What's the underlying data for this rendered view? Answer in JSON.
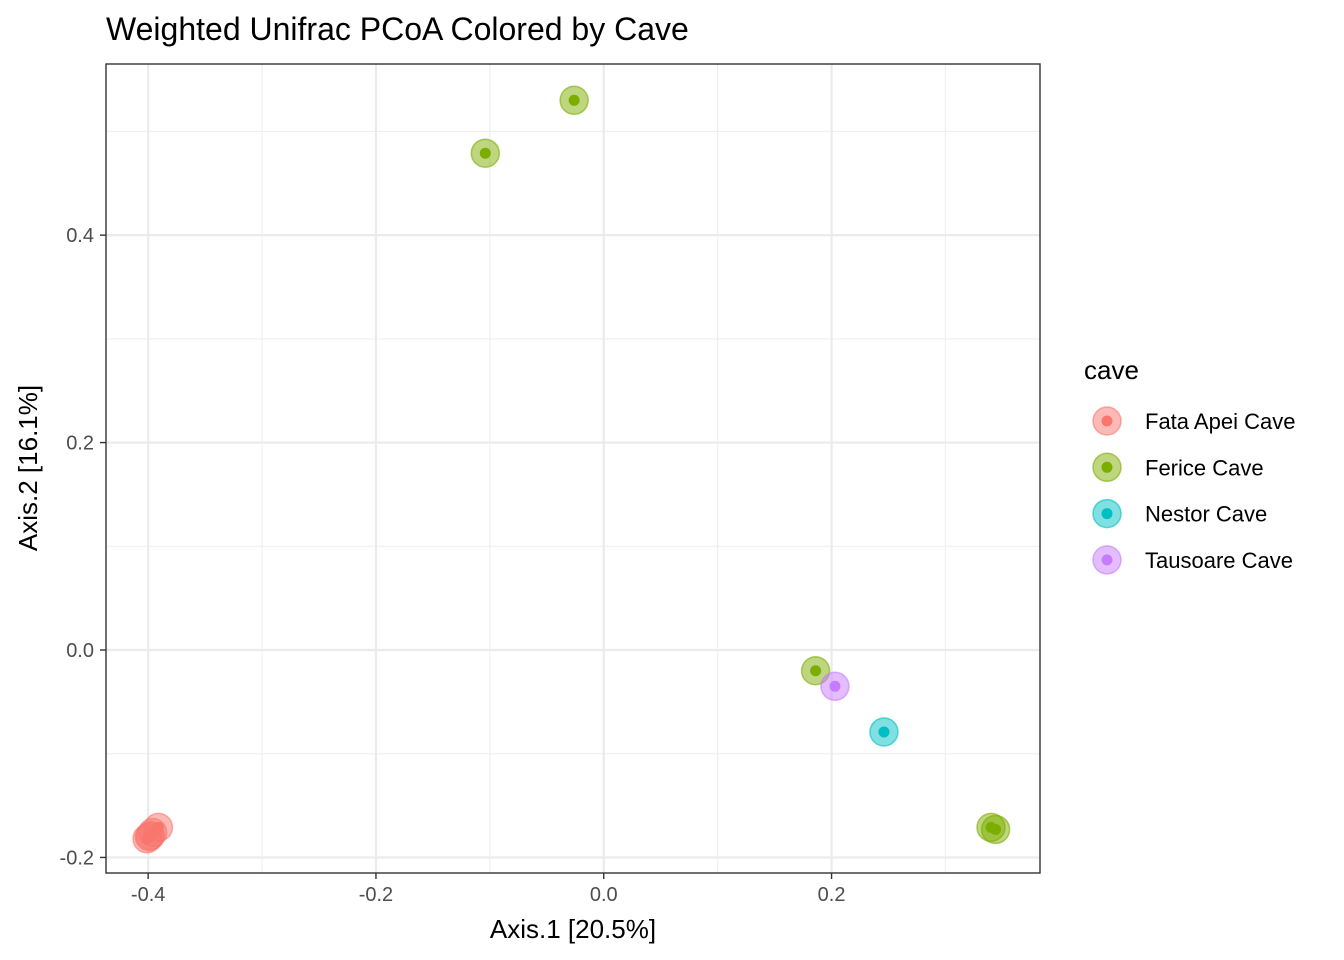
{
  "chart_data": {
    "type": "scatter",
    "title": "Weighted Unifrac PCoA Colored by Cave",
    "xlabel": "Axis.1   [20.5%]",
    "ylabel": "Axis.2   [16.1%]",
    "xlim": [
      -0.437,
      0.383
    ],
    "ylim": [
      -0.215,
      0.565
    ],
    "x_ticks": [
      -0.4,
      -0.2,
      0.0,
      0.2
    ],
    "x_tick_labels": [
      "-0.4",
      "-0.2",
      "0.0",
      "0.2"
    ],
    "y_ticks": [
      -0.2,
      0.0,
      0.2,
      0.4
    ],
    "y_tick_labels": [
      "-0.2",
      "0.0",
      "0.2",
      "0.4"
    ],
    "grid": true,
    "legend_position": "right",
    "legend_title": "cave",
    "series": [
      {
        "name": "Fata Apei Cave",
        "color": "#F8766D",
        "points": [
          {
            "x": -0.391,
            "y": -0.171
          },
          {
            "x": -0.396,
            "y": -0.176
          },
          {
            "x": -0.399,
            "y": -0.18
          },
          {
            "x": -0.401,
            "y": -0.182
          },
          {
            "x": -0.398,
            "y": -0.179
          }
        ]
      },
      {
        "name": "Ferice Cave",
        "color": "#7CAE00",
        "points": [
          {
            "x": -0.104,
            "y": 0.479
          },
          {
            "x": -0.026,
            "y": 0.53
          },
          {
            "x": 0.186,
            "y": -0.02
          },
          {
            "x": 0.34,
            "y": -0.171
          },
          {
            "x": 0.344,
            "y": -0.173
          }
        ]
      },
      {
        "name": "Nestor Cave",
        "color": "#00BFC4",
        "points": [
          {
            "x": 0.246,
            "y": -0.079
          }
        ]
      },
      {
        "name": "Tausoare Cave",
        "color": "#C77CFF",
        "points": [
          {
            "x": 0.203,
            "y": -0.035
          }
        ]
      }
    ]
  }
}
